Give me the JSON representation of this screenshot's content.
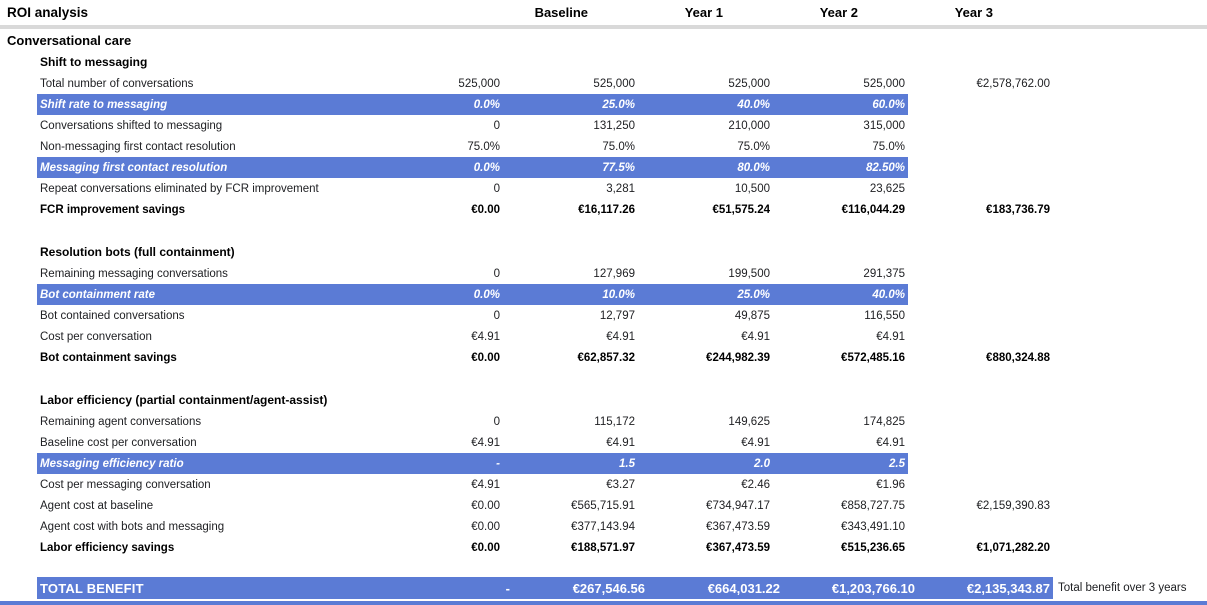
{
  "header": {
    "title": "ROI analysis",
    "columns": [
      "Baseline",
      "Year 1",
      "Year 2",
      "Year 3"
    ]
  },
  "group_title": "Conversational care",
  "sections": [
    {
      "title": "Shift to messaging",
      "rows": [
        {
          "label": "Total number of conversations",
          "values": [
            "525,000",
            "525,000",
            "525,000",
            "525,000"
          ],
          "total": "€2,578,762.00",
          "style": "normal"
        },
        {
          "label": "Shift rate to messaging",
          "values": [
            "0.0%",
            "25.0%",
            "40.0%",
            "60.0%"
          ],
          "total": "",
          "style": "highlight"
        },
        {
          "label": "Conversations shifted to messaging",
          "values": [
            "0",
            "131,250",
            "210,000",
            "315,000"
          ],
          "total": "",
          "style": "normal"
        },
        {
          "label": "Non-messaging first contact resolution",
          "values": [
            "75.0%",
            "75.0%",
            "75.0%",
            "75.0%"
          ],
          "total": "",
          "style": "normal"
        },
        {
          "label": "Messaging first contact resolution",
          "values": [
            "0.0%",
            "77.5%",
            "80.0%",
            "82.50%"
          ],
          "total": "",
          "style": "highlight"
        },
        {
          "label": "Repeat conversations eliminated by FCR improvement",
          "values": [
            "0",
            "3,281",
            "10,500",
            "23,625"
          ],
          "total": "",
          "style": "normal"
        },
        {
          "label": "FCR improvement savings",
          "values": [
            "€0.00",
            "€16,117.26",
            "€51,575.24",
            "€116,044.29"
          ],
          "total": "€183,736.79",
          "style": "bold"
        }
      ]
    },
    {
      "title": "Resolution bots (full containment)",
      "rows": [
        {
          "label": "Remaining messaging conversations",
          "values": [
            "0",
            "127,969",
            "199,500",
            "291,375"
          ],
          "total": "",
          "style": "normal"
        },
        {
          "label": "Bot containment rate",
          "values": [
            "0.0%",
            "10.0%",
            "25.0%",
            "40.0%"
          ],
          "total": "",
          "style": "highlight"
        },
        {
          "label": "Bot contained conversations",
          "values": [
            "0",
            "12,797",
            "49,875",
            "116,550"
          ],
          "total": "",
          "style": "normal"
        },
        {
          "label": "Cost per conversation",
          "values": [
            "€4.91",
            "€4.91",
            "€4.91",
            "€4.91"
          ],
          "total": "",
          "style": "normal"
        },
        {
          "label": "Bot containment savings",
          "values": [
            "€0.00",
            "€62,857.32",
            "€244,982.39",
            "€572,485.16"
          ],
          "total": "€880,324.88",
          "style": "bold"
        }
      ]
    },
    {
      "title": "Labor efficiency (partial containment/agent-assist)",
      "rows": [
        {
          "label": "Remaining agent conversations",
          "values": [
            "0",
            "115,172",
            "149,625",
            "174,825"
          ],
          "total": "",
          "style": "normal"
        },
        {
          "label": "Baseline cost per conversation",
          "values": [
            "€4.91",
            "€4.91",
            "€4.91",
            "€4.91"
          ],
          "total": "",
          "style": "normal"
        },
        {
          "label": "Messaging efficiency ratio",
          "values": [
            "-",
            "1.5",
            "2.0",
            "2.5"
          ],
          "total": "",
          "style": "highlight"
        },
        {
          "label": "Cost per messaging conversation",
          "values": [
            "€4.91",
            "€3.27",
            "€2.46",
            "€1.96"
          ],
          "total": "",
          "style": "normal"
        },
        {
          "label": "Agent cost at baseline",
          "values": [
            "€0.00",
            "€565,715.91",
            "€734,947.17",
            "€858,727.75"
          ],
          "total": "€2,159,390.83",
          "style": "normal"
        },
        {
          "label": "Agent cost with bots and messaging",
          "values": [
            "€0.00",
            "€377,143.94",
            "€367,473.59",
            "€343,491.10"
          ],
          "total": "",
          "style": "normal"
        },
        {
          "label": "Labor efficiency savings",
          "values": [
            "€0.00",
            "€188,571.97",
            "€367,473.59",
            "€515,236.65"
          ],
          "total": "€1,071,282.20",
          "style": "bold"
        }
      ]
    }
  ],
  "total_row": {
    "label": "TOTAL BENEFIT",
    "values": [
      "-",
      "€267,546.56",
      "€664,031.22",
      "€1,203,766.10"
    ],
    "total": "€2,135,343.87",
    "note": "Total benefit over 3 years"
  },
  "colors": {
    "highlight_blue": "#5b7bd5",
    "divider_gray": "#d9d9d9",
    "text_dark": "#202124",
    "highlight_text": "#ffffff"
  }
}
